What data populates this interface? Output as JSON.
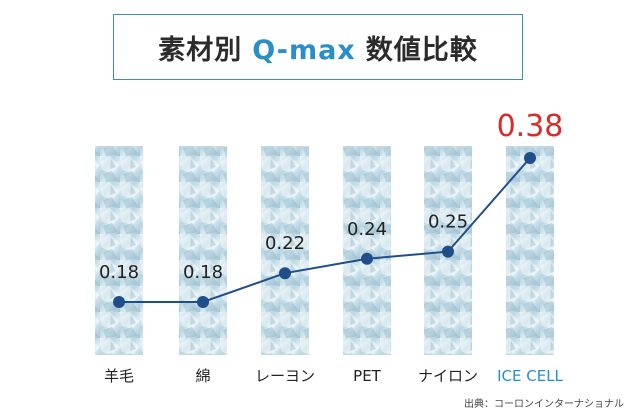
{
  "title": {
    "prefix": "素材別",
    "highlight": "Q-max",
    "suffix": "数値比較"
  },
  "source": "出典：コーロンインターナショナル",
  "colors": {
    "line": "#1f4e8a",
    "highlight_category": "#2a8fc8",
    "highlight_value": "#d92b2b",
    "text": "#222222"
  },
  "chart_data": {
    "type": "line",
    "categories": [
      "羊毛",
      "綿",
      "レーヨン",
      "PET",
      "ナイロン",
      "ICE CELL"
    ],
    "values": [
      0.18,
      0.18,
      0.22,
      0.24,
      0.25,
      0.38
    ],
    "value_labels": [
      "0.18",
      "0.18",
      "0.22",
      "0.24",
      "0.25",
      "0.38"
    ],
    "highlight_index": 5,
    "legend": "none"
  }
}
